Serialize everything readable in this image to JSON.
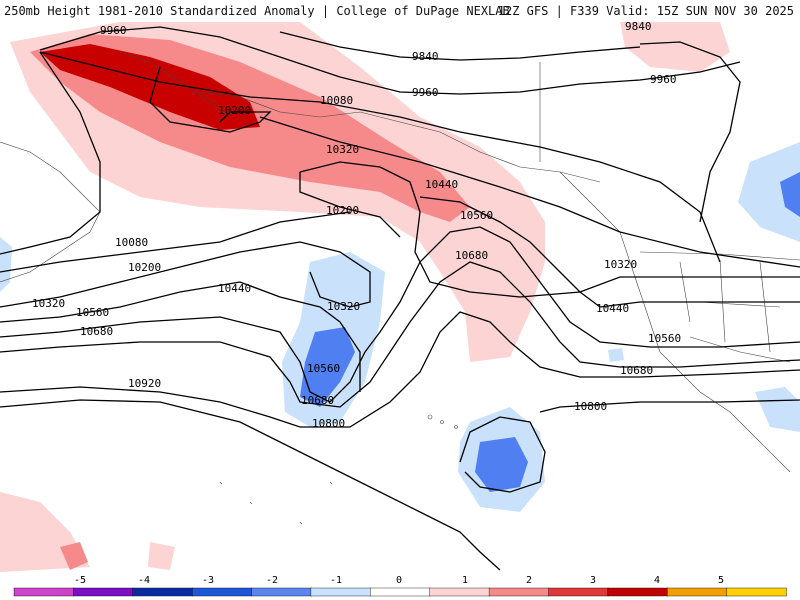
{
  "header": {
    "title": "250mb Height 1981-2010 Standardized Anomaly | College of DuPage NEXLAB",
    "run_info": "12Z GFS | F339 Valid: 15Z SUN NOV 30 2025"
  },
  "contour_labels": {
    "c9960_a": "9960",
    "c9840_a": "9840",
    "c9840_b": "9840",
    "c9960_b": "9960",
    "c9960_c": "9960",
    "c10080_a": "10080",
    "c10200_a": "10200",
    "c10320_a": "10320",
    "c10440_a": "10440",
    "c10560_a": "10560",
    "c10200_b": "10200",
    "c10080_b": "10080",
    "c10200_c": "10200",
    "c10320_b": "10320",
    "c10560_b": "10560",
    "c10680_a": "10680",
    "c10440_b": "10440",
    "c10320_c": "10320",
    "c10560_c": "10560",
    "c10680_b": "10680",
    "c10800_a": "10800",
    "c10920": "10920",
    "c10680_c": "10680",
    "c10320_d": "10320",
    "c10440_c": "10440",
    "c10560_d": "10560",
    "c10680_d": "10680",
    "c10800_b": "10800"
  },
  "colorbar": {
    "ticks": [
      "-5",
      "-4",
      "-3",
      "-2",
      "-1",
      "0",
      "1",
      "2",
      "3",
      "4",
      "5"
    ],
    "colors": [
      "#cc44cc",
      "#7a0fc4",
      "#0a2aa0",
      "#1f55d8",
      "#5a86f0",
      "#c9e1fb",
      "#ffffff",
      "#fcd4d4",
      "#f68a8a",
      "#e03838",
      "#c00000",
      "#f0a000",
      "#ffd000"
    ]
  },
  "colors": {
    "anom_pos1": "#fcd4d4",
    "anom_pos2": "#f68a8a",
    "anom_pos3": "#c80000",
    "anom_neg1": "#c9e1fb",
    "anom_neg2": "#4f7ff0"
  }
}
